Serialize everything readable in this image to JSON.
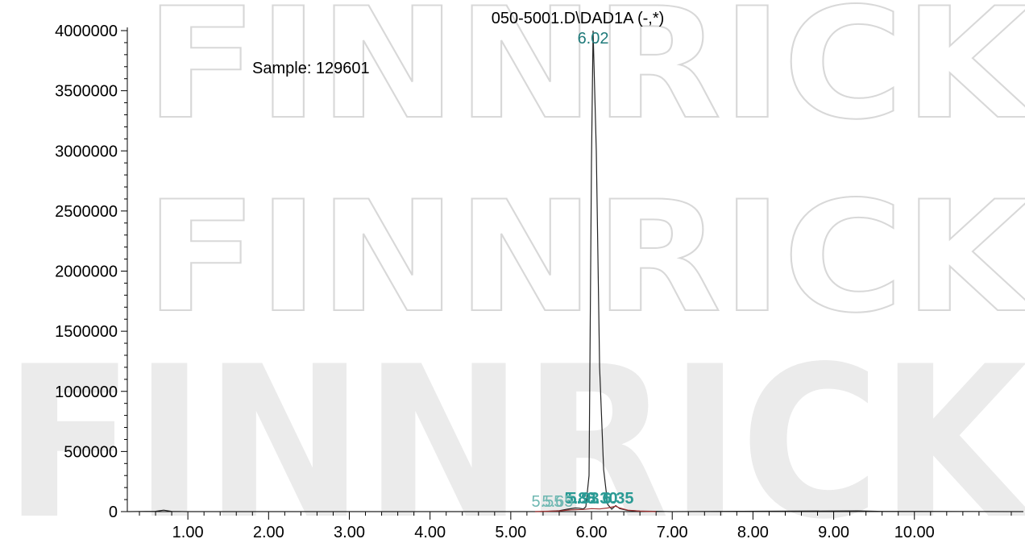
{
  "watermark": "FINNRICK",
  "chart_data": {
    "type": "line",
    "title": "050-5001.D\\DAD1A (-,*)",
    "annotation": "Sample:  129601",
    "xlim": [
      0.25,
      11.35
    ],
    "ylim": [
      0,
      4000000
    ],
    "x_ticks": [
      "1.00",
      "2.00",
      "3.00",
      "4.00",
      "5.00",
      "6.00",
      "7.00",
      "8.00",
      "9.00",
      "10.00"
    ],
    "y_ticks": [
      "0",
      "500000",
      "1000000",
      "1500000",
      "2000000",
      "2500000",
      "3000000",
      "3500000",
      "4000000"
    ],
    "grid": false,
    "series": [
      {
        "color": "#222222",
        "points": [
          [
            0.25,
            0
          ],
          [
            0.6,
            3000
          ],
          [
            0.7,
            12000
          ],
          [
            0.8,
            2000
          ],
          [
            1.0,
            0
          ],
          [
            5.4,
            0
          ],
          [
            5.6,
            8000
          ],
          [
            5.7,
            20000
          ],
          [
            5.8,
            30000
          ],
          [
            5.85,
            28000
          ],
          [
            5.9,
            22000
          ],
          [
            5.93,
            40000
          ],
          [
            5.97,
            300000
          ],
          [
            6.0,
            2900000
          ],
          [
            6.02,
            4000000
          ],
          [
            6.06,
            3000000
          ],
          [
            6.1,
            1200000
          ],
          [
            6.15,
            350000
          ],
          [
            6.2,
            60000
          ],
          [
            6.25,
            20000
          ],
          [
            6.3,
            50000
          ],
          [
            6.35,
            25000
          ],
          [
            6.45,
            10000
          ],
          [
            6.6,
            4000
          ],
          [
            7.0,
            0
          ],
          [
            9.3,
            6000
          ],
          [
            9.6,
            2000
          ],
          [
            11.35,
            0
          ]
        ]
      },
      {
        "color": "#a03030",
        "points": [
          [
            5.3,
            0
          ],
          [
            5.6,
            6000
          ],
          [
            5.75,
            15000
          ],
          [
            5.9,
            18000
          ],
          [
            6.0,
            25000
          ],
          [
            6.1,
            22000
          ],
          [
            6.2,
            30000
          ],
          [
            6.3,
            45000
          ],
          [
            6.35,
            30000
          ],
          [
            6.45,
            12000
          ],
          [
            6.6,
            4000
          ],
          [
            6.8,
            0
          ]
        ]
      }
    ],
    "peak_labels": [
      {
        "text": "6.02",
        "x": 6.02,
        "y": 4000000,
        "style": "main"
      },
      {
        "text": "5.88",
        "x": 5.86,
        "y": 0,
        "style": "small"
      },
      {
        "text": "6.30",
        "x": 6.13,
        "y": 0,
        "style": "small"
      },
      {
        "text": "6.35",
        "x": 6.33,
        "y": 0,
        "style": "small"
      },
      {
        "text": "5.93",
        "x": 5.9,
        "y": 0,
        "style": "small"
      },
      {
        "text": "5.55",
        "x": 5.45,
        "y": 0,
        "style": "faint"
      },
      {
        "text": "5.65",
        "x": 5.58,
        "y": 0,
        "style": "faint"
      }
    ]
  }
}
